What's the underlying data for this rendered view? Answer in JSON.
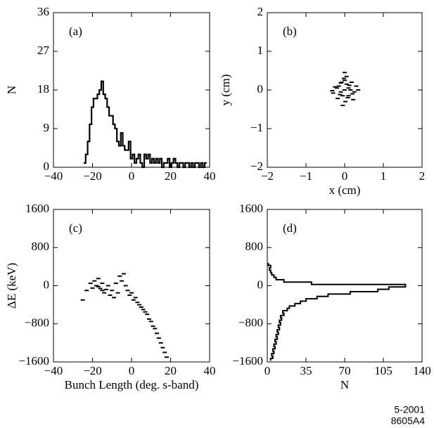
{
  "chart_data": [
    {
      "type": "line",
      "label": "(a)",
      "ylabel": "N",
      "x": [
        -24,
        -23,
        -22,
        -21,
        -20,
        -19,
        -18,
        -17,
        -16,
        -15,
        -14,
        -13,
        -12,
        -11,
        -10,
        -9,
        -8,
        -7,
        -6,
        -5,
        -4,
        -3,
        -2,
        -1,
        0,
        1,
        2,
        3,
        4,
        5,
        6,
        7,
        8,
        9,
        10,
        11,
        12,
        13,
        14,
        15,
        16,
        17,
        18,
        19,
        20,
        21,
        22,
        23,
        24,
        25,
        26,
        27,
        28,
        29,
        30,
        31,
        32,
        33,
        34,
        35,
        36,
        37,
        38
      ],
      "values": [
        1,
        3,
        6,
        10,
        14,
        16,
        16,
        17,
        18,
        20,
        17,
        16,
        14,
        12,
        12,
        10,
        9,
        6,
        5,
        8,
        5,
        4,
        4,
        6,
        2,
        3,
        1,
        2,
        3,
        1,
        0,
        3,
        2,
        3,
        1,
        2,
        1,
        2,
        1,
        2,
        0,
        1,
        1,
        2,
        0,
        1,
        2,
        1,
        0,
        1,
        1,
        0,
        1,
        1,
        0,
        1,
        0,
        1,
        1,
        0,
        1,
        0,
        1
      ],
      "xlim": [
        -40,
        40
      ],
      "xticks": [
        {
          "value": -40,
          "label": "−40"
        },
        {
          "value": -20,
          "label": "−20"
        },
        0,
        20,
        40
      ],
      "ylim": [
        0,
        36
      ],
      "yticks": [
        0,
        9,
        18,
        27,
        36
      ]
    },
    {
      "type": "scatter",
      "label": "(b)",
      "xlabel": "x  (cm)",
      "ylabel": "y  (cm)",
      "x": [
        0.0,
        0.1,
        -0.1,
        0.05,
        -0.05,
        0.15,
        -0.15,
        0.2,
        -0.2,
        0.0,
        0.08,
        -0.08,
        0.12,
        -0.12,
        0.25,
        -0.25,
        0.3,
        -0.3,
        0.02,
        -0.02,
        0.18,
        -0.18,
        0.1,
        -0.1,
        0.05,
        -0.05,
        0.35,
        -0.32,
        0.0,
        0.22
      ],
      "y": [
        0.0,
        0.05,
        -0.05,
        0.15,
        -0.15,
        0.0,
        0.1,
        -0.1,
        0.05,
        0.25,
        -0.2,
        0.2,
        0.12,
        -0.12,
        -0.05,
        0.08,
        0.1,
        -0.08,
        -0.3,
        0.3,
        0.2,
        -0.22,
        -0.15,
        0.18,
        0.35,
        -0.4,
        0.0,
        -0.02,
        0.45,
        -0.25
      ],
      "xlim": [
        -2,
        2
      ],
      "xticks": [
        {
          "value": -2,
          "label": "−2"
        },
        {
          "value": -1,
          "label": "−1"
        },
        0,
        1,
        2
      ],
      "ylim": [
        -2,
        2
      ],
      "yticks": [
        {
          "value": -2,
          "label": "−2"
        },
        {
          "value": -1,
          "label": "−1"
        },
        0,
        1,
        2
      ]
    },
    {
      "type": "scatter",
      "label": "(c)",
      "xlabel": "Bunch Length  (deg. s-band)",
      "ylabel": "ΔE  (keV)",
      "x": [
        -25,
        -23,
        -21,
        -20,
        -19,
        -18,
        -17,
        -17,
        -16,
        -15,
        -15,
        -14,
        -13,
        -12,
        -11,
        -10,
        -9,
        -8,
        -7,
        -6,
        -5,
        -4,
        -3,
        -2,
        -1,
        0,
        1,
        2,
        3,
        4,
        5,
        6,
        7,
        8,
        9,
        10,
        11,
        12,
        13,
        14,
        15,
        16,
        17,
        18
      ],
      "y": [
        -300,
        -100,
        50,
        -50,
        100,
        0,
        -20,
        150,
        -60,
        -100,
        50,
        -150,
        -80,
        0,
        -200,
        -100,
        -250,
        50,
        -150,
        200,
        100,
        250,
        0,
        -100,
        -200,
        -150,
        -300,
        -250,
        -350,
        -400,
        -450,
        -500,
        -550,
        -600,
        -700,
        -750,
        -850,
        -900,
        -1000,
        -1100,
        -1200,
        -1300,
        -1400,
        -1500
      ],
      "xlim": [
        -40,
        40
      ],
      "xticks": [
        {
          "value": -40,
          "label": "−40"
        },
        {
          "value": -20,
          "label": "−20"
        },
        0,
        20,
        40
      ],
      "ylim": [
        -1600,
        1600
      ],
      "yticks": [
        {
          "value": -1600,
          "label": "−1600"
        },
        {
          "value": -800,
          "label": "−800"
        },
        0,
        800,
        1600
      ]
    },
    {
      "type": "hline",
      "label": "(d)",
      "xlabel": "N",
      "y": [
        -1550,
        -1500,
        -1450,
        -1400,
        -1350,
        -1300,
        -1250,
        -1200,
        -1150,
        -1100,
        -1050,
        -1000,
        -950,
        -900,
        -850,
        -800,
        -750,
        -700,
        -650,
        -600,
        -550,
        -500,
        -450,
        -400,
        -350,
        -300,
        -250,
        -200,
        -150,
        -100,
        -50,
        0,
        50,
        100,
        150,
        200,
        250,
        300,
        350,
        400,
        450
      ],
      "values": [
        3,
        5,
        4,
        6,
        5,
        7,
        6,
        8,
        7,
        9,
        8,
        10,
        9,
        11,
        10,
        12,
        11,
        13,
        12,
        15,
        14,
        18,
        20,
        25,
        30,
        35,
        45,
        55,
        75,
        100,
        110,
        125,
        40,
        15,
        8,
        6,
        4,
        3,
        2,
        3,
        1
      ],
      "xlim": [
        0,
        140
      ],
      "xticks": [
        0,
        35,
        70,
        105,
        140
      ],
      "ylim": [
        -1600,
        1600
      ],
      "yticks": [
        {
          "value": -1600,
          "label": "−1600"
        },
        {
          "value": -800,
          "label": "−800"
        },
        0,
        800,
        1600
      ]
    }
  ],
  "footer": [
    "5-2001",
    "8605A4"
  ]
}
